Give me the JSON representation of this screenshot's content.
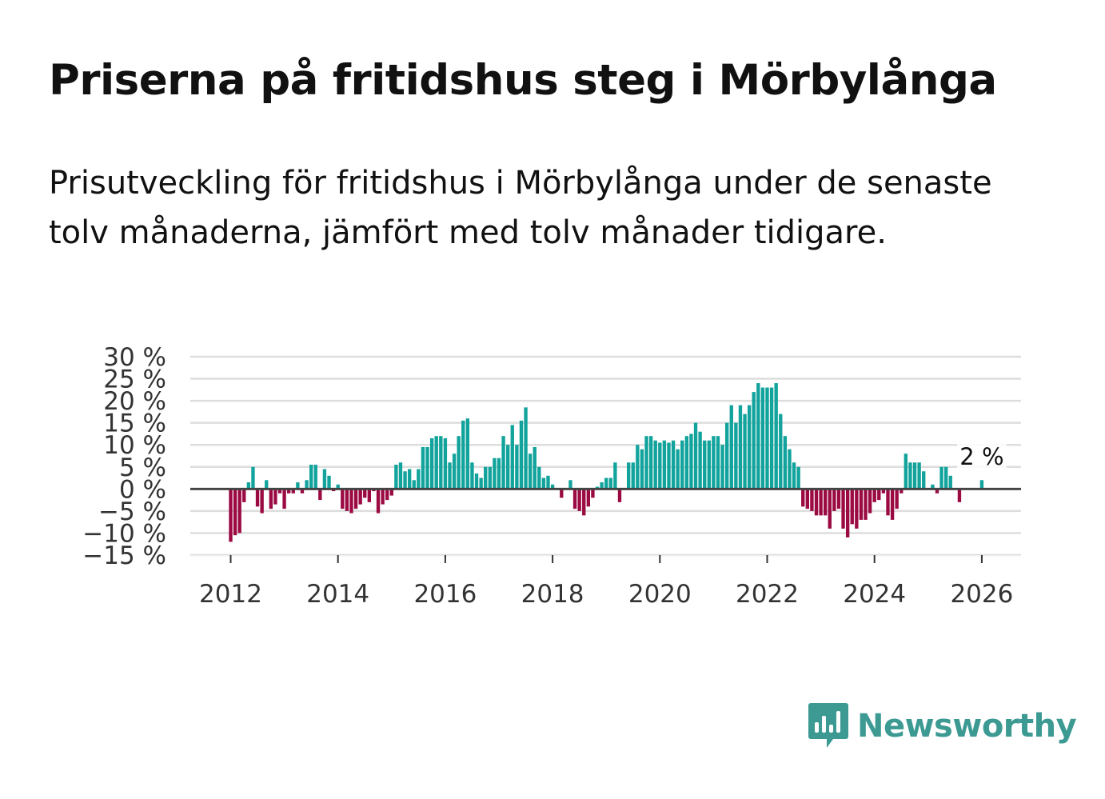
{
  "title": "Priserna på fritidshus steg i Mörbylånga",
  "subtitle": "Prisutveckling för fritidshus i Mörbylånga under de senaste tolv månaderna, jämfört med tolv månader tidigare.",
  "brand": {
    "name": "Newsworthy",
    "color": "#3c9a93"
  },
  "colors": {
    "positive": "#11a39c",
    "negative": "#9b0a43",
    "grid": "#dddddd",
    "zero": "#444444"
  },
  "chart_data": {
    "type": "bar",
    "title": "Priserna på fritidshus steg i Mörbylånga",
    "xlabel": "",
    "ylabel": "",
    "ylim": [
      -15,
      30
    ],
    "y_ticks": [
      30,
      25,
      20,
      15,
      10,
      5,
      0,
      -5,
      -10,
      -15
    ],
    "y_tick_labels": [
      "30 %",
      "25 %",
      "20 %",
      "15 %",
      "10 %",
      "5 %",
      "0 %",
      "−5 %",
      "−10 %",
      "−15 %"
    ],
    "x_ticks": [
      2012,
      2014,
      2016,
      2018,
      2020,
      2022,
      2024,
      2026
    ],
    "x_tick_labels": [
      "2012",
      "2014",
      "2016",
      "2018",
      "2020",
      "2022",
      "2024",
      "2026"
    ],
    "start_month": "2012-01",
    "values": [
      -12,
      -10.5,
      -10,
      -3,
      1.5,
      5,
      -4,
      -5.5,
      2,
      -4.5,
      -3.5,
      -1,
      -4.5,
      -1,
      -1,
      1.5,
      -1,
      2,
      5.5,
      5.5,
      -2.5,
      4.5,
      3,
      -0.5,
      1,
      -4.5,
      -5,
      -5.5,
      -4.5,
      -3.5,
      -2,
      -3,
      -0.5,
      -5.5,
      -3.5,
      -2.5,
      -1.5,
      5.5,
      6,
      4,
      4.5,
      2,
      4.5,
      9.5,
      9.5,
      11.5,
      12,
      12,
      11.5,
      6,
      8,
      12,
      15.5,
      16,
      6,
      3.5,
      2.5,
      5,
      5,
      7,
      7,
      12,
      10,
      14.5,
      10,
      15.5,
      18.5,
      8,
      9.5,
      5,
      2.5,
      3,
      1,
      0,
      -2,
      0,
      2,
      -4.5,
      -5,
      -6,
      -4,
      -2,
      0.5,
      1.5,
      2.5,
      2.5,
      6,
      -3,
      0,
      6,
      6,
      10,
      9,
      12,
      12,
      11,
      10.5,
      11,
      10.5,
      11,
      9,
      11,
      12,
      12.5,
      15,
      13,
      11,
      11,
      12,
      12,
      10,
      15,
      19,
      15,
      19,
      17,
      19,
      22,
      24,
      23,
      23,
      23,
      24,
      17,
      12,
      9,
      6,
      5,
      -4,
      -4.5,
      -5,
      -6,
      -6,
      -6,
      -9,
      -5,
      -4.5,
      -9,
      -11,
      -8,
      -9,
      -7,
      -7,
      -5.5,
      -3,
      -2.5,
      -1,
      -6,
      -7,
      -4.5,
      -1,
      8,
      6,
      6,
      6,
      4,
      0,
      1,
      -1,
      5,
      5,
      3,
      0,
      -3,
      0,
      0,
      0,
      0,
      2,
      0
    ],
    "annotation": {
      "label": "2 %",
      "month": "2026-01",
      "value": 2
    }
  }
}
